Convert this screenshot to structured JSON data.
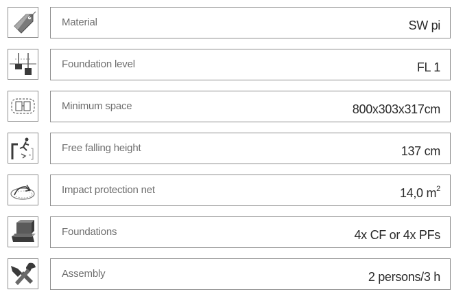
{
  "specs": [
    {
      "icon": "price-tag-icon",
      "label": "Material",
      "value": "SW pi",
      "unit_sup": ""
    },
    {
      "icon": "foundation-level-icon",
      "label": "Foundation level",
      "value": "FL 1",
      "unit_sup": ""
    },
    {
      "icon": "minimum-space-icon",
      "label": "Minimum space",
      "value": "800x303x317cm",
      "unit_sup": ""
    },
    {
      "icon": "free-falling-height-icon",
      "label": "Free falling height",
      "value": "137 cm",
      "unit_sup": ""
    },
    {
      "icon": "impact-protection-icon",
      "label": "Impact protection net",
      "value": "14,0 m",
      "unit_sup": "2"
    },
    {
      "icon": "foundations-icon",
      "label": "Foundations",
      "value": "4x CF or 4x PFs",
      "unit_sup": ""
    },
    {
      "icon": "assembly-tools-icon",
      "label": "Assembly",
      "value": "2 persons/3 h",
      "unit_sup": ""
    }
  ],
  "colors": {
    "border": "#8c8c8c",
    "label": "#6e6e6e",
    "value": "#2a2a2a",
    "icon_dark": "#3a3a3a",
    "icon_mid": "#7a7a7a"
  }
}
